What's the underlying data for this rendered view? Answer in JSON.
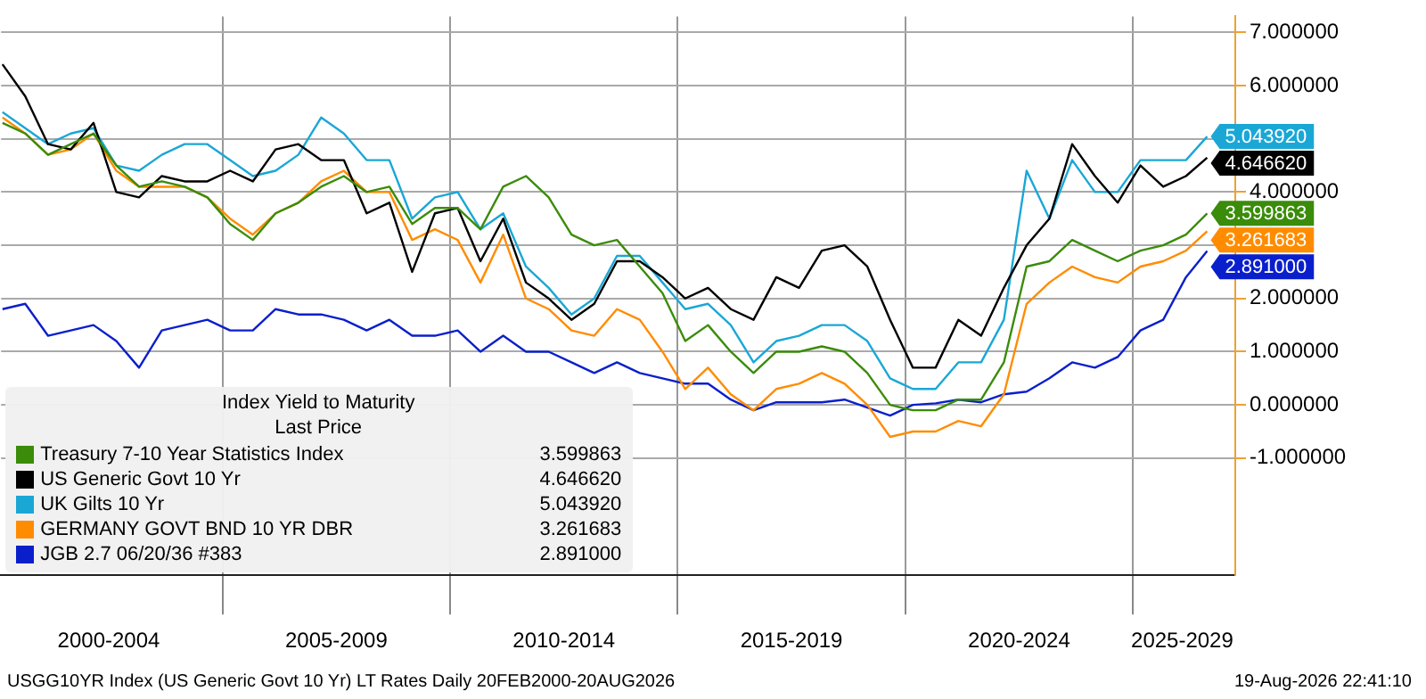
{
  "chart_data": {
    "type": "line",
    "legend_title": "Index Yield to Maturity",
    "annotations": [
      "Last Price",
      "USGG10YR Index (US Generic Govt 10 Yr) LT Rates Daily 20FEB2000-20AUG2026",
      "19-Aug-2026 22:41:10"
    ],
    "x": [
      "2000-03",
      "2000-09",
      "2001-03",
      "2001-09",
      "2002-03",
      "2002-09",
      "2003-03",
      "2003-09",
      "2004-03",
      "2004-09",
      "2005-03",
      "2005-09",
      "2006-03",
      "2006-09",
      "2007-03",
      "2007-09",
      "2008-03",
      "2008-09",
      "2009-03",
      "2009-09",
      "2010-03",
      "2010-09",
      "2011-03",
      "2011-09",
      "2012-03",
      "2012-09",
      "2013-03",
      "2013-09",
      "2014-03",
      "2014-09",
      "2015-03",
      "2015-09",
      "2016-03",
      "2016-09",
      "2017-03",
      "2017-09",
      "2018-03",
      "2018-09",
      "2019-03",
      "2019-09",
      "2020-03",
      "2020-09",
      "2021-03",
      "2021-09",
      "2022-03",
      "2022-09",
      "2023-03",
      "2023-09",
      "2024-03",
      "2024-09",
      "2025-03",
      "2025-09",
      "2026-03",
      "2026-08-19"
    ],
    "series": [
      {
        "name": "Treasury 7-10 Year Statistics Index",
        "color": "#3a8c0a",
        "values": [
          5.3,
          5.1,
          4.7,
          4.9,
          5.1,
          4.5,
          4.1,
          4.2,
          4.1,
          3.9,
          3.4,
          3.1,
          3.6,
          3.8,
          4.1,
          4.3,
          4.0,
          4.1,
          3.4,
          3.7,
          3.7,
          3.3,
          4.1,
          4.3,
          3.9,
          3.2,
          3.0,
          3.1,
          2.6,
          2.1,
          1.2,
          1.5,
          1.0,
          0.6,
          1.0,
          1.0,
          1.1,
          1.0,
          0.6,
          0.0,
          -0.1,
          -0.1,
          0.1,
          0.1,
          0.8,
          2.6,
          2.7,
          3.1,
          2.9,
          2.7,
          2.9,
          3.0,
          3.2,
          3.599863
        ],
        "value_labels": [
          null,
          null,
          null,
          null,
          null,
          null,
          null,
          null,
          null,
          null,
          null,
          null,
          null,
          null,
          null,
          null,
          null,
          null,
          null,
          null,
          null,
          null,
          null,
          null,
          null,
          null,
          null,
          null,
          null,
          null,
          null,
          null,
          null,
          null,
          null,
          null,
          null,
          null,
          null,
          null,
          null,
          null,
          null,
          null,
          null,
          null,
          null,
          null,
          null,
          null,
          null,
          null,
          null,
          "3.599863"
        ]
      },
      {
        "name": "US Generic Govt 10 Yr",
        "color": "#000000",
        "values": [
          6.4,
          5.8,
          4.9,
          4.8,
          5.3,
          4.0,
          3.9,
          4.3,
          4.2,
          4.2,
          4.4,
          4.2,
          4.8,
          4.9,
          4.6,
          4.6,
          3.6,
          3.8,
          2.5,
          3.6,
          3.7,
          2.7,
          3.5,
          2.3,
          2.0,
          1.6,
          1.9,
          2.7,
          2.7,
          2.4,
          2.0,
          2.2,
          1.8,
          1.6,
          2.4,
          2.2,
          2.9,
          3.0,
          2.6,
          1.6,
          0.7,
          0.7,
          1.6,
          1.3,
          2.2,
          3.0,
          3.5,
          4.9,
          4.3,
          3.8,
          4.5,
          4.1,
          4.3,
          4.64662
        ],
        "value_labels": [
          null,
          null,
          null,
          null,
          null,
          null,
          null,
          null,
          null,
          null,
          null,
          null,
          null,
          null,
          null,
          null,
          null,
          null,
          null,
          null,
          null,
          null,
          null,
          null,
          null,
          null,
          null,
          null,
          null,
          null,
          null,
          null,
          null,
          null,
          null,
          null,
          null,
          null,
          null,
          null,
          null,
          null,
          null,
          null,
          null,
          null,
          null,
          null,
          null,
          null,
          null,
          null,
          null,
          "4.646620"
        ]
      },
      {
        "name": "UK Gilts 10 Yr",
        "color": "#1aa7d6",
        "values": [
          5.5,
          5.2,
          4.9,
          5.1,
          5.2,
          4.5,
          4.4,
          4.7,
          4.9,
          4.9,
          4.6,
          4.3,
          4.4,
          4.7,
          5.4,
          5.1,
          4.6,
          4.6,
          3.5,
          3.9,
          4.0,
          3.3,
          3.6,
          2.6,
          2.2,
          1.7,
          2.0,
          2.8,
          2.8,
          2.3,
          1.8,
          1.9,
          1.5,
          0.8,
          1.2,
          1.3,
          1.5,
          1.5,
          1.2,
          0.5,
          0.3,
          0.3,
          0.8,
          0.8,
          1.6,
          4.4,
          3.5,
          4.6,
          4.0,
          4.0,
          4.6,
          4.6,
          4.6,
          5.04392
        ],
        "value_labels": [
          null,
          null,
          null,
          null,
          null,
          null,
          null,
          null,
          null,
          null,
          null,
          null,
          null,
          null,
          null,
          null,
          null,
          null,
          null,
          null,
          null,
          null,
          null,
          null,
          null,
          null,
          null,
          null,
          null,
          null,
          null,
          null,
          null,
          null,
          null,
          null,
          null,
          null,
          null,
          null,
          null,
          null,
          null,
          null,
          null,
          null,
          null,
          null,
          null,
          null,
          null,
          null,
          null,
          "5.043920"
        ]
      },
      {
        "name": "GERMANY GOVT BND 10 YR DBR",
        "color": "#ff8c00",
        "values": [
          5.4,
          5.1,
          4.7,
          4.8,
          5.1,
          4.4,
          4.1,
          4.1,
          4.1,
          3.9,
          3.5,
          3.2,
          3.6,
          3.8,
          4.2,
          4.4,
          4.0,
          4.0,
          3.1,
          3.3,
          3.1,
          2.3,
          3.2,
          2.0,
          1.8,
          1.4,
          1.3,
          1.8,
          1.6,
          1.0,
          0.3,
          0.7,
          0.2,
          -0.1,
          0.3,
          0.4,
          0.6,
          0.4,
          0.0,
          -0.6,
          -0.5,
          -0.5,
          -0.3,
          -0.4,
          0.2,
          1.9,
          2.3,
          2.6,
          2.4,
          2.3,
          2.6,
          2.7,
          2.9,
          3.261683
        ],
        "value_labels": [
          null,
          null,
          null,
          null,
          null,
          null,
          null,
          null,
          null,
          null,
          null,
          null,
          null,
          null,
          null,
          null,
          null,
          null,
          null,
          null,
          null,
          null,
          null,
          null,
          null,
          null,
          null,
          null,
          null,
          null,
          null,
          null,
          null,
          null,
          null,
          null,
          null,
          null,
          null,
          null,
          null,
          null,
          null,
          null,
          null,
          null,
          null,
          null,
          null,
          null,
          null,
          null,
          null,
          "3.261683"
        ]
      },
      {
        "name": "JGB 2.7 06/20/36 #383",
        "color": "#0a1fcc",
        "values": [
          1.8,
          1.9,
          1.3,
          1.4,
          1.5,
          1.2,
          0.7,
          1.4,
          1.5,
          1.6,
          1.4,
          1.4,
          1.8,
          1.7,
          1.7,
          1.6,
          1.4,
          1.6,
          1.3,
          1.3,
          1.4,
          1.0,
          1.3,
          1.0,
          1.0,
          0.8,
          0.6,
          0.8,
          0.6,
          0.5,
          0.4,
          0.4,
          0.1,
          -0.1,
          0.05,
          0.05,
          0.05,
          0.1,
          -0.05,
          -0.2,
          0.0,
          0.03,
          0.1,
          0.05,
          0.2,
          0.25,
          0.5,
          0.8,
          0.7,
          0.9,
          1.4,
          1.6,
          2.4,
          2.891
        ],
        "value_labels": [
          null,
          null,
          null,
          null,
          null,
          null,
          null,
          null,
          null,
          null,
          null,
          null,
          null,
          null,
          null,
          null,
          null,
          null,
          null,
          null,
          null,
          null,
          null,
          null,
          null,
          null,
          null,
          null,
          null,
          null,
          null,
          null,
          null,
          null,
          null,
          null,
          null,
          null,
          null,
          null,
          null,
          null,
          null,
          null,
          null,
          null,
          null,
          null,
          null,
          null,
          null,
          null,
          null,
          "2.891000"
        ]
      }
    ],
    "xlim": [
      "2000-02-20",
      "2027-04"
    ],
    "xticks": [
      {
        "value": "2002-07",
        "label": "2000-2004"
      },
      {
        "value": "2005",
        "label": null
      },
      {
        "value": "2007-07",
        "label": "2005-2009"
      },
      {
        "value": "2010",
        "label": null
      },
      {
        "value": "2012-07",
        "label": "2010-2014"
      },
      {
        "value": "2015",
        "label": null
      },
      {
        "value": "2017-07",
        "label": "2015-2019"
      },
      {
        "value": "2020",
        "label": null
      },
      {
        "value": "2022-07",
        "label": "2020-2024"
      },
      {
        "value": "2025",
        "label": null
      },
      {
        "value": "2026-02",
        "label": "2025-2029"
      }
    ],
    "ylim": [
      -3.2,
      7.3
    ],
    "yticks": [
      {
        "value": -1,
        "label": "-1.000000"
      },
      {
        "value": 0,
        "label": "0.000000"
      },
      {
        "value": 1,
        "label": "1.000000"
      },
      {
        "value": 2,
        "label": "2.000000"
      },
      {
        "value": 3,
        "label": null
      },
      {
        "value": 4,
        "label": "4.000000"
      },
      {
        "value": 5,
        "label": null
      },
      {
        "value": 6,
        "label": "6.000000"
      },
      {
        "value": 7,
        "label": "7.000000"
      }
    ],
    "grid": true,
    "legend": "bottom left",
    "marker": "none",
    "line_style": "solid"
  }
}
